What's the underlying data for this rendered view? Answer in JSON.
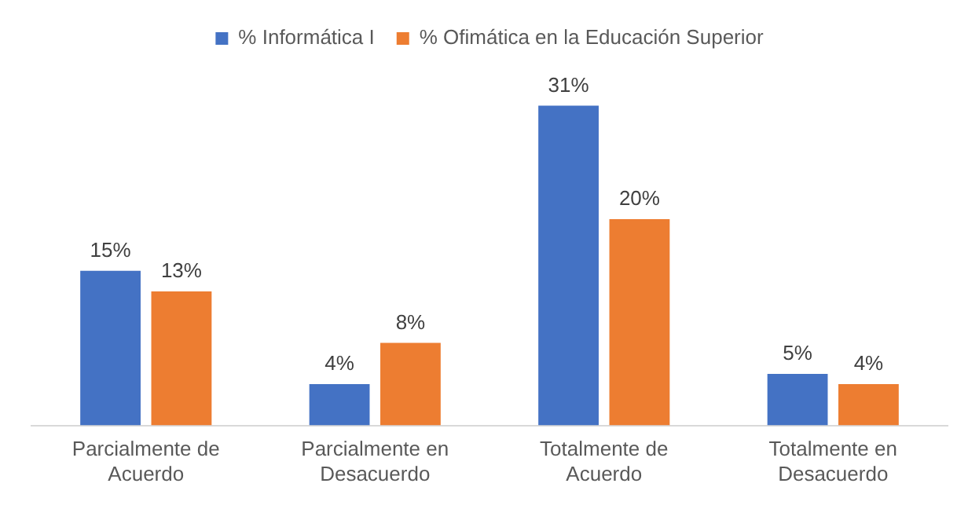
{
  "chart_data": {
    "type": "bar",
    "categories": [
      "Parcialmente de Acuerdo",
      "Parcialmente en Desacuerdo",
      "Totalmente de Acuerdo",
      "Totalmente en Desacuerdo"
    ],
    "series": [
      {
        "name": "% Informática I",
        "color": "#4472c4",
        "values": [
          15,
          4,
          31,
          5
        ],
        "value_labels": [
          "15%",
          "4%",
          "31%",
          "5%"
        ]
      },
      {
        "name": "% Ofimática en la Educación Superior",
        "color": "#ed7d31",
        "values": [
          13,
          8,
          20,
          4
        ],
        "value_labels": [
          "13%",
          "8%",
          "20%",
          "4%"
        ]
      }
    ],
    "legend": "top",
    "grid": false
  }
}
